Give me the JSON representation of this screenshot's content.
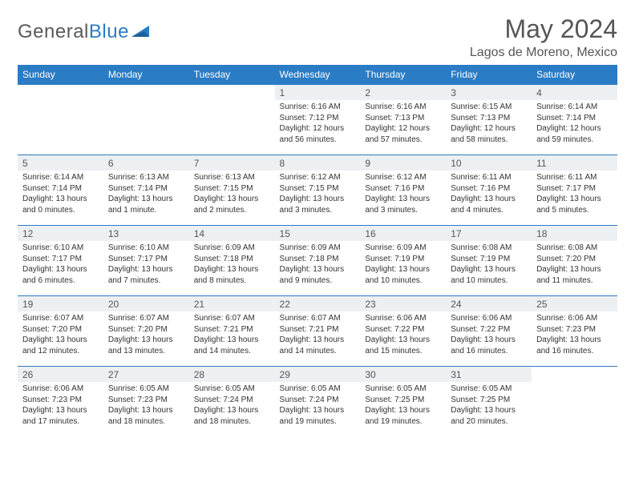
{
  "logo": {
    "text1": "General",
    "text2": "Blue"
  },
  "title": "May 2024",
  "location": "Lagos de Moreno, Mexico",
  "weekdays": [
    "Sunday",
    "Monday",
    "Tuesday",
    "Wednesday",
    "Thursday",
    "Friday",
    "Saturday"
  ],
  "colors": {
    "header_bg": "#2a7cc4",
    "header_text": "#ffffff",
    "daynum_bg": "#edf0f2",
    "border": "#2a7cc4",
    "text": "#333333",
    "title_color": "#555555",
    "logo_gray": "#5a5a5a",
    "logo_blue": "#2a7cc4"
  },
  "layout": {
    "rows": 5,
    "cols": 7,
    "leading_blanks": 3
  },
  "days": [
    {
      "n": "1",
      "sunrise": "Sunrise: 6:16 AM",
      "sunset": "Sunset: 7:12 PM",
      "daylight": "Daylight: 12 hours and 56 minutes."
    },
    {
      "n": "2",
      "sunrise": "Sunrise: 6:16 AM",
      "sunset": "Sunset: 7:13 PM",
      "daylight": "Daylight: 12 hours and 57 minutes."
    },
    {
      "n": "3",
      "sunrise": "Sunrise: 6:15 AM",
      "sunset": "Sunset: 7:13 PM",
      "daylight": "Daylight: 12 hours and 58 minutes."
    },
    {
      "n": "4",
      "sunrise": "Sunrise: 6:14 AM",
      "sunset": "Sunset: 7:14 PM",
      "daylight": "Daylight: 12 hours and 59 minutes."
    },
    {
      "n": "5",
      "sunrise": "Sunrise: 6:14 AM",
      "sunset": "Sunset: 7:14 PM",
      "daylight": "Daylight: 13 hours and 0 minutes."
    },
    {
      "n": "6",
      "sunrise": "Sunrise: 6:13 AM",
      "sunset": "Sunset: 7:14 PM",
      "daylight": "Daylight: 13 hours and 1 minute."
    },
    {
      "n": "7",
      "sunrise": "Sunrise: 6:13 AM",
      "sunset": "Sunset: 7:15 PM",
      "daylight": "Daylight: 13 hours and 2 minutes."
    },
    {
      "n": "8",
      "sunrise": "Sunrise: 6:12 AM",
      "sunset": "Sunset: 7:15 PM",
      "daylight": "Daylight: 13 hours and 3 minutes."
    },
    {
      "n": "9",
      "sunrise": "Sunrise: 6:12 AM",
      "sunset": "Sunset: 7:16 PM",
      "daylight": "Daylight: 13 hours and 3 minutes."
    },
    {
      "n": "10",
      "sunrise": "Sunrise: 6:11 AM",
      "sunset": "Sunset: 7:16 PM",
      "daylight": "Daylight: 13 hours and 4 minutes."
    },
    {
      "n": "11",
      "sunrise": "Sunrise: 6:11 AM",
      "sunset": "Sunset: 7:17 PM",
      "daylight": "Daylight: 13 hours and 5 minutes."
    },
    {
      "n": "12",
      "sunrise": "Sunrise: 6:10 AM",
      "sunset": "Sunset: 7:17 PM",
      "daylight": "Daylight: 13 hours and 6 minutes."
    },
    {
      "n": "13",
      "sunrise": "Sunrise: 6:10 AM",
      "sunset": "Sunset: 7:17 PM",
      "daylight": "Daylight: 13 hours and 7 minutes."
    },
    {
      "n": "14",
      "sunrise": "Sunrise: 6:09 AM",
      "sunset": "Sunset: 7:18 PM",
      "daylight": "Daylight: 13 hours and 8 minutes."
    },
    {
      "n": "15",
      "sunrise": "Sunrise: 6:09 AM",
      "sunset": "Sunset: 7:18 PM",
      "daylight": "Daylight: 13 hours and 9 minutes."
    },
    {
      "n": "16",
      "sunrise": "Sunrise: 6:09 AM",
      "sunset": "Sunset: 7:19 PM",
      "daylight": "Daylight: 13 hours and 10 minutes."
    },
    {
      "n": "17",
      "sunrise": "Sunrise: 6:08 AM",
      "sunset": "Sunset: 7:19 PM",
      "daylight": "Daylight: 13 hours and 10 minutes."
    },
    {
      "n": "18",
      "sunrise": "Sunrise: 6:08 AM",
      "sunset": "Sunset: 7:20 PM",
      "daylight": "Daylight: 13 hours and 11 minutes."
    },
    {
      "n": "19",
      "sunrise": "Sunrise: 6:07 AM",
      "sunset": "Sunset: 7:20 PM",
      "daylight": "Daylight: 13 hours and 12 minutes."
    },
    {
      "n": "20",
      "sunrise": "Sunrise: 6:07 AM",
      "sunset": "Sunset: 7:20 PM",
      "daylight": "Daylight: 13 hours and 13 minutes."
    },
    {
      "n": "21",
      "sunrise": "Sunrise: 6:07 AM",
      "sunset": "Sunset: 7:21 PM",
      "daylight": "Daylight: 13 hours and 14 minutes."
    },
    {
      "n": "22",
      "sunrise": "Sunrise: 6:07 AM",
      "sunset": "Sunset: 7:21 PM",
      "daylight": "Daylight: 13 hours and 14 minutes."
    },
    {
      "n": "23",
      "sunrise": "Sunrise: 6:06 AM",
      "sunset": "Sunset: 7:22 PM",
      "daylight": "Daylight: 13 hours and 15 minutes."
    },
    {
      "n": "24",
      "sunrise": "Sunrise: 6:06 AM",
      "sunset": "Sunset: 7:22 PM",
      "daylight": "Daylight: 13 hours and 16 minutes."
    },
    {
      "n": "25",
      "sunrise": "Sunrise: 6:06 AM",
      "sunset": "Sunset: 7:23 PM",
      "daylight": "Daylight: 13 hours and 16 minutes."
    },
    {
      "n": "26",
      "sunrise": "Sunrise: 6:06 AM",
      "sunset": "Sunset: 7:23 PM",
      "daylight": "Daylight: 13 hours and 17 minutes."
    },
    {
      "n": "27",
      "sunrise": "Sunrise: 6:05 AM",
      "sunset": "Sunset: 7:23 PM",
      "daylight": "Daylight: 13 hours and 18 minutes."
    },
    {
      "n": "28",
      "sunrise": "Sunrise: 6:05 AM",
      "sunset": "Sunset: 7:24 PM",
      "daylight": "Daylight: 13 hours and 18 minutes."
    },
    {
      "n": "29",
      "sunrise": "Sunrise: 6:05 AM",
      "sunset": "Sunset: 7:24 PM",
      "daylight": "Daylight: 13 hours and 19 minutes."
    },
    {
      "n": "30",
      "sunrise": "Sunrise: 6:05 AM",
      "sunset": "Sunset: 7:25 PM",
      "daylight": "Daylight: 13 hours and 19 minutes."
    },
    {
      "n": "31",
      "sunrise": "Sunrise: 6:05 AM",
      "sunset": "Sunset: 7:25 PM",
      "daylight": "Daylight: 13 hours and 20 minutes."
    }
  ]
}
